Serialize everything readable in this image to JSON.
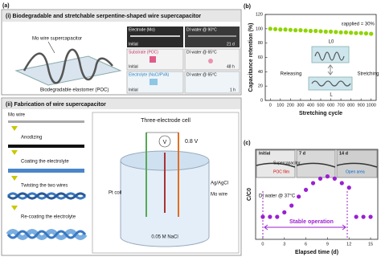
{
  "panel_a": {
    "label": "(a)",
    "section_i": {
      "title": "(i) Biodegradable and stretchable serpentine-shaped wire supercapacitor",
      "device_label": "Mo wire supercapacitor",
      "substrate_label": "Biodegradable elastomer (POC)",
      "photo_rows": [
        {
          "material": "Electrode (Mo)",
          "condition": "DI water @ 90°C",
          "start": "Initial",
          "end": "21 d"
        },
        {
          "material": "Substrate (POC)",
          "condition": "DI water @ 65°C",
          "start": "Initial",
          "end": "48 h"
        },
        {
          "material": "Electrolyte (NaCl/PVA)",
          "condition": "DI water @ 65°C",
          "start": "Initial",
          "end": "1 h"
        }
      ]
    },
    "section_ii": {
      "title": "(ii) Fabrication of wire supercapacitor",
      "steps": [
        "Mo wire",
        "Anodizing",
        "Coating the electrolyte",
        "Twisting the two wires",
        "Re-coating the electrolyte"
      ],
      "cell_title": "Three-electrode cell",
      "voltage": "0.8 V",
      "meter": "V",
      "counter": "Pt coil",
      "reference": "Ag/AgCl",
      "working": "Mo wire",
      "solution": "0.05 M NaCl"
    }
  },
  "chart_data": [
    {
      "type": "scatter",
      "label": "(b)",
      "x_label": "Stretching cycle",
      "y_label": "Capacitance retention (%)",
      "legend_label": "εapplied = 30%",
      "annotations": [
        "Releasing",
        "Stretching",
        "L0",
        "L"
      ],
      "x": [
        0,
        50,
        100,
        150,
        200,
        250,
        300,
        350,
        400,
        450,
        500,
        550,
        600,
        650,
        700,
        750,
        800,
        850,
        900,
        950,
        1000
      ],
      "values": [
        100,
        99.5,
        99,
        99,
        98.5,
        98,
        98,
        97.5,
        97,
        97,
        96.5,
        96,
        96,
        95.5,
        95,
        95,
        94.5,
        94,
        94,
        93.5,
        93
      ],
      "color": "#8fd400",
      "xlim": [
        -50,
        1050
      ],
      "xticks": [
        0,
        100,
        200,
        300,
        400,
        500,
        600,
        700,
        800,
        900,
        1000
      ],
      "ylim": [
        0,
        120
      ],
      "yticks": [
        0,
        20,
        40,
        60,
        80,
        100,
        120
      ]
    },
    {
      "type": "scatter",
      "label": "(c)",
      "x_label": "Elapsed time (d)",
      "y_label": "C/C0",
      "annotations": [
        "Initial",
        "7 d",
        "14 d",
        "Supercapacitor",
        "POC film",
        "Open area",
        "DI water @ 37°C",
        "Stable operation"
      ],
      "x": [
        0,
        1,
        2,
        3,
        4,
        5,
        6,
        7,
        8,
        9,
        10,
        11,
        12,
        13,
        14,
        15
      ],
      "values": [
        1,
        1,
        1,
        1.2,
        1.5,
        1.9,
        2.2,
        2.5,
        2.7,
        2.8,
        2.7,
        2.5,
        2.3,
        1,
        1,
        1
      ],
      "color": "#9b1fd1",
      "xlim": [
        -1,
        16
      ],
      "xticks": [
        0,
        3,
        6,
        9,
        12,
        15
      ],
      "ylim": [
        0,
        4
      ]
    }
  ]
}
